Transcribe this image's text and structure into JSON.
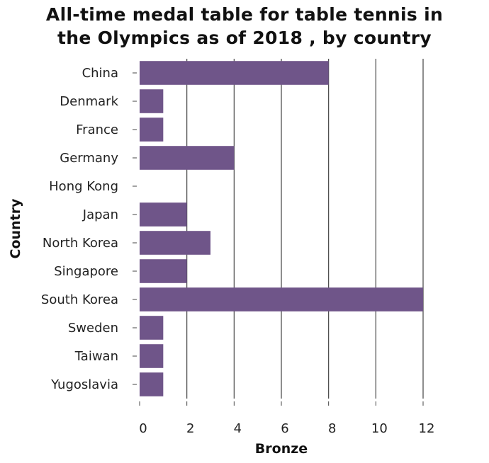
{
  "chart_data": {
    "type": "bar",
    "orientation": "horizontal",
    "title_lines": [
      "All-time medal table for table tennis in",
      "the Olympics as of 2018 , by country"
    ],
    "xlabel": "Bronze",
    "ylabel": "Country",
    "categories": [
      "China",
      "Denmark",
      "France",
      "Germany",
      "Hong Kong",
      "Japan",
      "North Korea",
      "Singapore",
      "South Korea",
      "Sweden",
      "Taiwan",
      "Yugoslavia"
    ],
    "values": [
      8,
      1,
      1,
      4,
      0,
      2,
      3,
      2,
      12,
      1,
      1,
      1
    ],
    "xlim": [
      0,
      12
    ],
    "xticks": [
      0,
      2,
      4,
      6,
      8,
      10,
      12
    ],
    "grid": "vertical",
    "colors": {
      "bar": "#6f5589",
      "grid": "#444444",
      "background": "#ffffff"
    }
  }
}
